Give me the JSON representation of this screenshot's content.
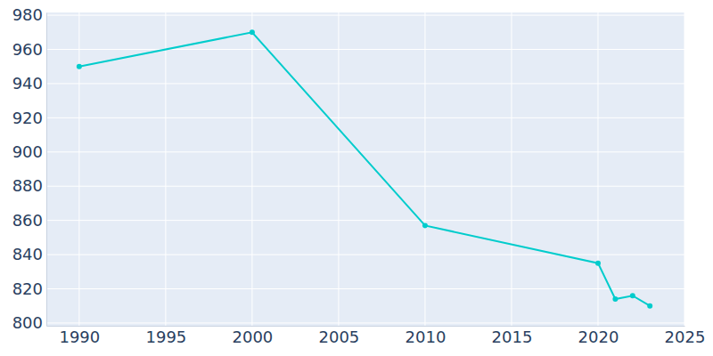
{
  "chart_data": {
    "type": "line",
    "x": [
      1990,
      2000,
      2010,
      2020,
      2021,
      2022,
      2023
    ],
    "values": [
      950,
      970,
      857,
      835,
      814,
      816,
      810
    ],
    "color": "#00cccc",
    "marker": "circle",
    "xlim": [
      1988.1,
      2025
    ],
    "xticks": [
      1990,
      1995,
      2000,
      2005,
      2010,
      2015,
      2020,
      2025
    ],
    "ylim": [
      798.4,
      981.6
    ],
    "yticks": [
      800,
      820,
      840,
      860,
      880,
      900,
      920,
      940,
      960,
      980
    ],
    "grid": true
  }
}
